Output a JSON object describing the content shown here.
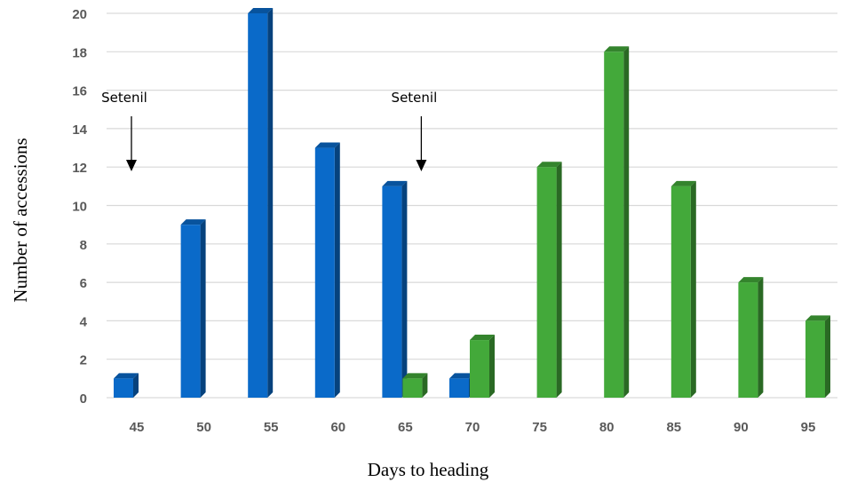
{
  "chart_data": {
    "type": "bar",
    "categories": [
      "45",
      "50",
      "55",
      "60",
      "65",
      "70",
      "75",
      "80",
      "85",
      "90",
      "95"
    ],
    "series": [
      {
        "color": "#0a6ac9",
        "values": [
          1,
          9,
          20,
          13,
          11,
          1,
          0,
          0,
          0,
          0,
          0
        ]
      },
      {
        "color": "#43a93a",
        "values": [
          0,
          0,
          0,
          0,
          1,
          3,
          12,
          18,
          11,
          6,
          4
        ]
      }
    ],
    "xlabel": "Days to heading",
    "ylabel": "Number of accessions",
    "ylim": [
      0,
      20
    ],
    "yticks": [
      0,
      2,
      4,
      6,
      8,
      10,
      12,
      14,
      16,
      18,
      20
    ],
    "grid": true,
    "annotations": [
      {
        "text": "Setenil",
        "category": "45"
      },
      {
        "text": "Setenil",
        "category": "65"
      }
    ]
  }
}
